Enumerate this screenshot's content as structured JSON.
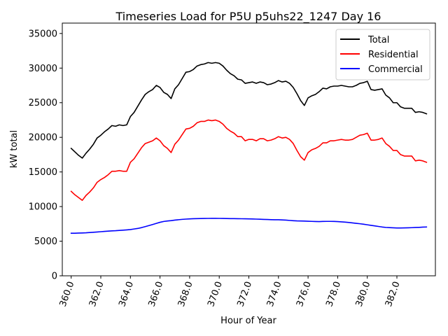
{
  "chart_data": {
    "type": "line",
    "title": "Timeseries Load for P5U p5uhs22_1247  Day 16",
    "xlabel": "Hour of Year",
    "ylabel": "kW total",
    "xlim": [
      359.4,
      384.6
    ],
    "ylim": [
      0,
      36500
    ],
    "x_ticks": [
      360.0,
      362.0,
      364.0,
      366.0,
      368.0,
      370.0,
      372.0,
      374.0,
      376.0,
      378.0,
      380.0,
      382.0
    ],
    "x_tick_labels": [
      "360.0",
      "362.0",
      "364.0",
      "366.0",
      "368.0",
      "370.0",
      "372.0",
      "374.0",
      "376.0",
      "378.0",
      "380.0",
      "382.0"
    ],
    "y_ticks": [
      0,
      5000,
      10000,
      15000,
      20000,
      25000,
      30000,
      35000
    ],
    "y_tick_labels": [
      "0",
      "5000",
      "10000",
      "15000",
      "20000",
      "25000",
      "30000",
      "35000"
    ],
    "legend_position": "top-right",
    "x_start": 360.0,
    "x_step": 0.25,
    "series": [
      {
        "name": "Total",
        "color": "#000000",
        "values": [
          18400,
          17900,
          17400,
          17000,
          17700,
          18300,
          19000,
          19900,
          20300,
          20800,
          21200,
          21700,
          21600,
          21800,
          21700,
          21800,
          23000,
          23600,
          24500,
          25400,
          26200,
          26600,
          26900,
          27500,
          27200,
          26500,
          26200,
          25600,
          27000,
          27600,
          28500,
          29400,
          29500,
          29800,
          30300,
          30500,
          30600,
          30800,
          30700,
          30800,
          30700,
          30300,
          29700,
          29200,
          28900,
          28400,
          28300,
          27800,
          27900,
          28000,
          27800,
          28000,
          27900,
          27600,
          27700,
          27900,
          28200,
          28000,
          28100,
          27800,
          27200,
          26300,
          25300,
          24600,
          25700,
          26000,
          26200,
          26600,
          27100,
          27000,
          27300,
          27400,
          27400,
          27500,
          27400,
          27300,
          27300,
          27500,
          27800,
          27900,
          28100,
          26900,
          26800,
          26900,
          27000,
          26100,
          25700,
          25000,
          25000,
          24400,
          24200,
          24200,
          24200,
          23600,
          23700,
          23600,
          23400
        ]
      },
      {
        "name": "Residential",
        "color": "#ff0000",
        "values": [
          12200,
          11700,
          11300,
          10900,
          11600,
          12100,
          12700,
          13500,
          13900,
          14200,
          14600,
          15100,
          15100,
          15200,
          15100,
          15100,
          16400,
          16900,
          17700,
          18500,
          19100,
          19300,
          19500,
          19900,
          19500,
          18800,
          18400,
          17800,
          19000,
          19600,
          20400,
          21200,
          21300,
          21600,
          22100,
          22300,
          22300,
          22500,
          22400,
          22500,
          22300,
          21900,
          21300,
          20900,
          20600,
          20100,
          20100,
          19500,
          19700,
          19700,
          19500,
          19800,
          19800,
          19500,
          19600,
          19800,
          20100,
          19900,
          20000,
          19700,
          19100,
          18100,
          17200,
          16700,
          17800,
          18200,
          18400,
          18700,
          19200,
          19200,
          19500,
          19500,
          19600,
          19700,
          19600,
          19600,
          19700,
          20000,
          20300,
          20400,
          20600,
          19600,
          19600,
          19700,
          19900,
          19100,
          18700,
          18100,
          18100,
          17500,
          17300,
          17300,
          17300,
          16600,
          16700,
          16600,
          16400
        ]
      },
      {
        "name": "Commercial",
        "color": "#0000ff",
        "values": [
          6150,
          6150,
          6170,
          6190,
          6210,
          6250,
          6290,
          6330,
          6370,
          6410,
          6450,
          6490,
          6510,
          6550,
          6590,
          6630,
          6680,
          6760,
          6840,
          6960,
          7100,
          7250,
          7410,
          7570,
          7730,
          7850,
          7920,
          7970,
          8040,
          8100,
          8150,
          8190,
          8220,
          8250,
          8260,
          8270,
          8280,
          8290,
          8300,
          8300,
          8290,
          8280,
          8270,
          8260,
          8260,
          8250,
          8240,
          8230,
          8220,
          8210,
          8190,
          8170,
          8150,
          8130,
          8110,
          8100,
          8100,
          8070,
          8040,
          8000,
          7960,
          7930,
          7920,
          7910,
          7880,
          7860,
          7840,
          7830,
          7850,
          7860,
          7860,
          7850,
          7830,
          7790,
          7750,
          7700,
          7640,
          7580,
          7520,
          7450,
          7370,
          7290,
          7210,
          7130,
          7050,
          6990,
          6960,
          6930,
          6910,
          6910,
          6920,
          6930,
          6950,
          6980,
          7000,
          7030,
          7050
        ]
      }
    ]
  }
}
